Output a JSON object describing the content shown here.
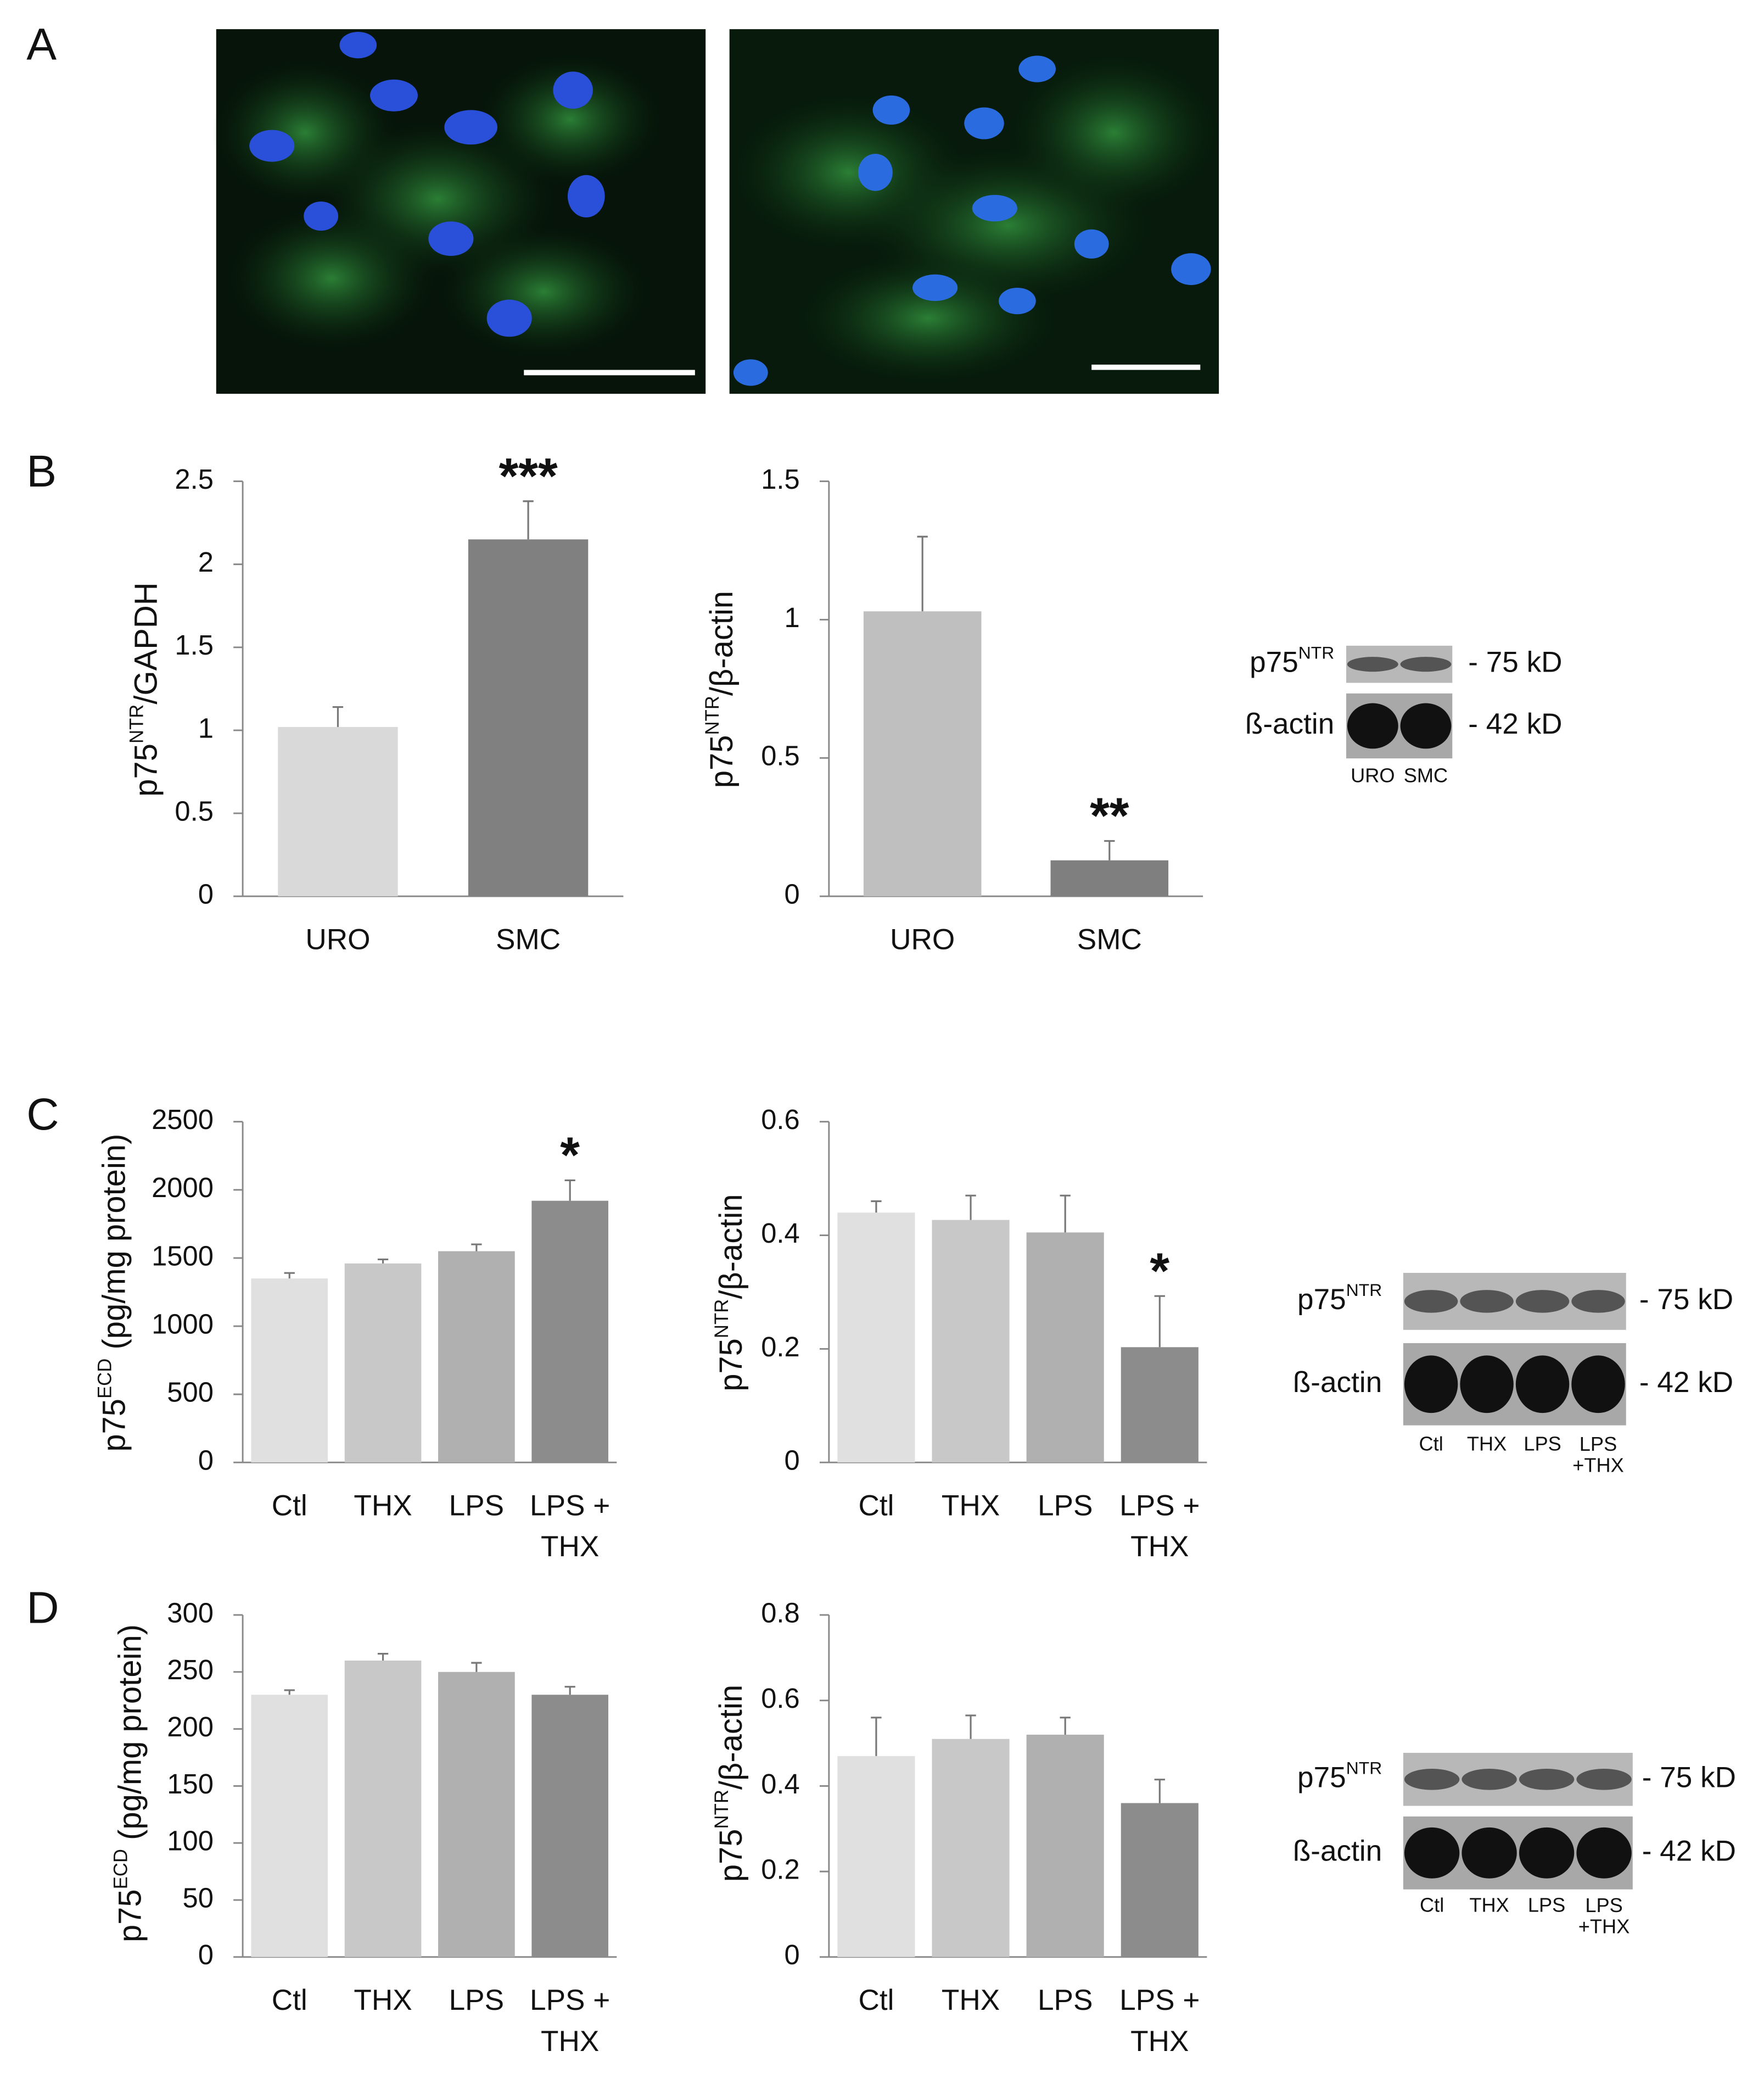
{
  "panel_labels": [
    "A",
    "B",
    "C",
    "D"
  ],
  "chart_data": [
    {
      "type": "bar",
      "ylabel": [
        "p75",
        "NTR",
        "/GAPDH"
      ],
      "categories": [
        "URO",
        "SMC"
      ],
      "values": [
        1.02,
        2.15
      ],
      "errors": [
        0.12,
        0.23
      ],
      "colors": [
        "#d9d9d9",
        "#808080"
      ],
      "annotations": [
        null,
        "***"
      ],
      "ylim": [
        0,
        2.5
      ],
      "yticks": [
        0,
        0.5,
        1,
        1.5,
        2,
        2.5
      ],
      "grid": false
    },
    {
      "type": "bar",
      "ylabel": [
        "p75",
        "NTR",
        "/β-actin"
      ],
      "categories": [
        "URO",
        "SMC"
      ],
      "values": [
        1.03,
        0.13
      ],
      "errors": [
        0.27,
        0.07
      ],
      "colors": [
        "#bfbfbf",
        "#7f7f7f"
      ],
      "annotations": [
        null,
        "**"
      ],
      "ylim": [
        0,
        1.5
      ],
      "yticks": [
        0,
        0.5,
        1,
        1.5
      ],
      "grid": false
    },
    {
      "type": "bar",
      "ylabel": [
        "p75",
        "ECD",
        " (pg/mg protein)"
      ],
      "categories": [
        "Ctl",
        "THX",
        "LPS",
        [
          "LPS +",
          "THX"
        ]
      ],
      "values": [
        1350,
        1460,
        1550,
        1920
      ],
      "errors": [
        40,
        30,
        50,
        150
      ],
      "colors": [
        "#e0e0e0",
        "#c8c8c8",
        "#b0b0b0",
        "#8c8c8c"
      ],
      "annotations": [
        null,
        null,
        null,
        "*"
      ],
      "ylim": [
        0,
        2500
      ],
      "yticks": [
        0,
        500,
        1000,
        1500,
        2000,
        2500
      ],
      "grid": false
    },
    {
      "type": "bar",
      "ylabel": [
        "p75",
        "NTR",
        "/β-actin"
      ],
      "categories": [
        "Ctl",
        "THX",
        "LPS",
        [
          "LPS +",
          "THX"
        ]
      ],
      "values": [
        0.44,
        0.427,
        0.405,
        0.203
      ],
      "errors": [
        0.02,
        0.043,
        0.065,
        0.09
      ],
      "colors": [
        "#e0e0e0",
        "#c8c8c8",
        "#b0b0b0",
        "#8c8c8c"
      ],
      "annotations": [
        null,
        null,
        null,
        "*"
      ],
      "ylim": [
        0,
        0.6
      ],
      "yticks": [
        0,
        0.2,
        0.4,
        0.6
      ],
      "grid": false
    },
    {
      "type": "bar",
      "ylabel": [
        "p75",
        "ECD",
        " (pg/mg protein)"
      ],
      "categories": [
        "Ctl",
        "THX",
        "LPS",
        [
          "LPS +",
          "THX"
        ]
      ],
      "values": [
        230,
        260,
        250,
        230
      ],
      "errors": [
        4,
        6,
        8,
        7
      ],
      "colors": [
        "#e0e0e0",
        "#c8c8c8",
        "#b0b0b0",
        "#8c8c8c"
      ],
      "annotations": [
        null,
        null,
        null,
        null
      ],
      "ylim": [
        0,
        300
      ],
      "yticks": [
        0,
        50,
        100,
        150,
        200,
        250,
        300
      ],
      "grid": false
    },
    {
      "type": "bar",
      "ylabel": [
        "p75",
        "NTR",
        "/β-actin"
      ],
      "categories": [
        "Ctl",
        "THX",
        "LPS",
        [
          "LPS +",
          "THX"
        ]
      ],
      "values": [
        0.47,
        0.51,
        0.52,
        0.36
      ],
      "errors": [
        0.09,
        0.055,
        0.04,
        0.055
      ],
      "colors": [
        "#e0e0e0",
        "#c8c8c8",
        "#b0b0b0",
        "#8c8c8c"
      ],
      "annotations": [
        null,
        null,
        null,
        null
      ],
      "ylim": [
        0,
        0.8
      ],
      "yticks": [
        0,
        0.2,
        0.4,
        0.6,
        0.8
      ],
      "grid": false
    }
  ],
  "blots": [
    {
      "rows": [
        {
          "label": [
            "p75",
            "NTR"
          ],
          "size": "- 75 kD"
        },
        {
          "label": [
            "ß-actin"
          ],
          "size": "- 42 kD"
        }
      ],
      "lanes": [
        "URO",
        "SMC"
      ]
    },
    {
      "rows": [
        {
          "label": [
            "p75",
            "NTR"
          ],
          "size": "- 75 kD"
        },
        {
          "label": [
            "ß-actin"
          ],
          "size": "- 42 kD"
        }
      ],
      "lanes": [
        "Ctl",
        "THX",
        "LPS",
        [
          "LPS",
          "+THX"
        ]
      ]
    },
    {
      "rows": [
        {
          "label": [
            "p75",
            "NTR"
          ],
          "size": "- 75 kD"
        },
        {
          "label": [
            "ß-actin"
          ],
          "size": "- 42 kD"
        }
      ],
      "lanes": [
        "Ctl",
        "THX",
        "LPS",
        [
          "LPS",
          "+THX"
        ]
      ]
    }
  ]
}
